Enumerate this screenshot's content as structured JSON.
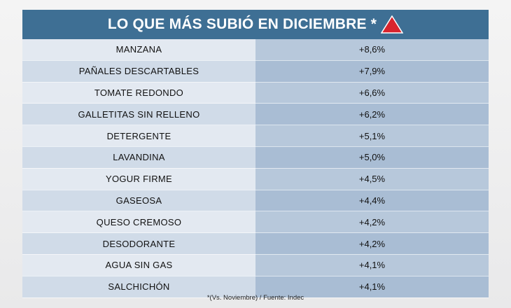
{
  "title": "LO QUE MÁS SUBIÓ EN DICIEMBRE *",
  "accent_color": "#d8242d",
  "header_color": "#3e6f94",
  "header_icon": "up-triangle-icon",
  "chart_data": {
    "type": "table",
    "title": "LO QUE MÁS SUBIÓ EN DICIEMBRE *",
    "rows": [
      {
        "item": "MANZANA",
        "change": "+8,6%"
      },
      {
        "item": "PAÑALES DESCARTABLES",
        "change": "+7,9%"
      },
      {
        "item": "TOMATE REDONDO",
        "change": "+6,6%"
      },
      {
        "item": "GALLETITAS SIN RELLENO",
        "change": "+6,2%"
      },
      {
        "item": "DETERGENTE",
        "change": "+5,1%"
      },
      {
        "item": "LAVANDINA",
        "change": "+5,0%"
      },
      {
        "item": "YOGUR FIRME",
        "change": "+4,5%"
      },
      {
        "item": "GASEOSA",
        "change": "+4,4%"
      },
      {
        "item": "QUESO CREMOSO",
        "change": "+4,2%"
      },
      {
        "item": "DESODORANTE",
        "change": "+4,2%"
      },
      {
        "item": "AGUA SIN GAS",
        "change": "+4,1%"
      },
      {
        "item": "SALCHICHÓN",
        "change": "+4,1%"
      }
    ]
  },
  "footnote": "*(Vs. Noviembre) / Fuente: Indec"
}
